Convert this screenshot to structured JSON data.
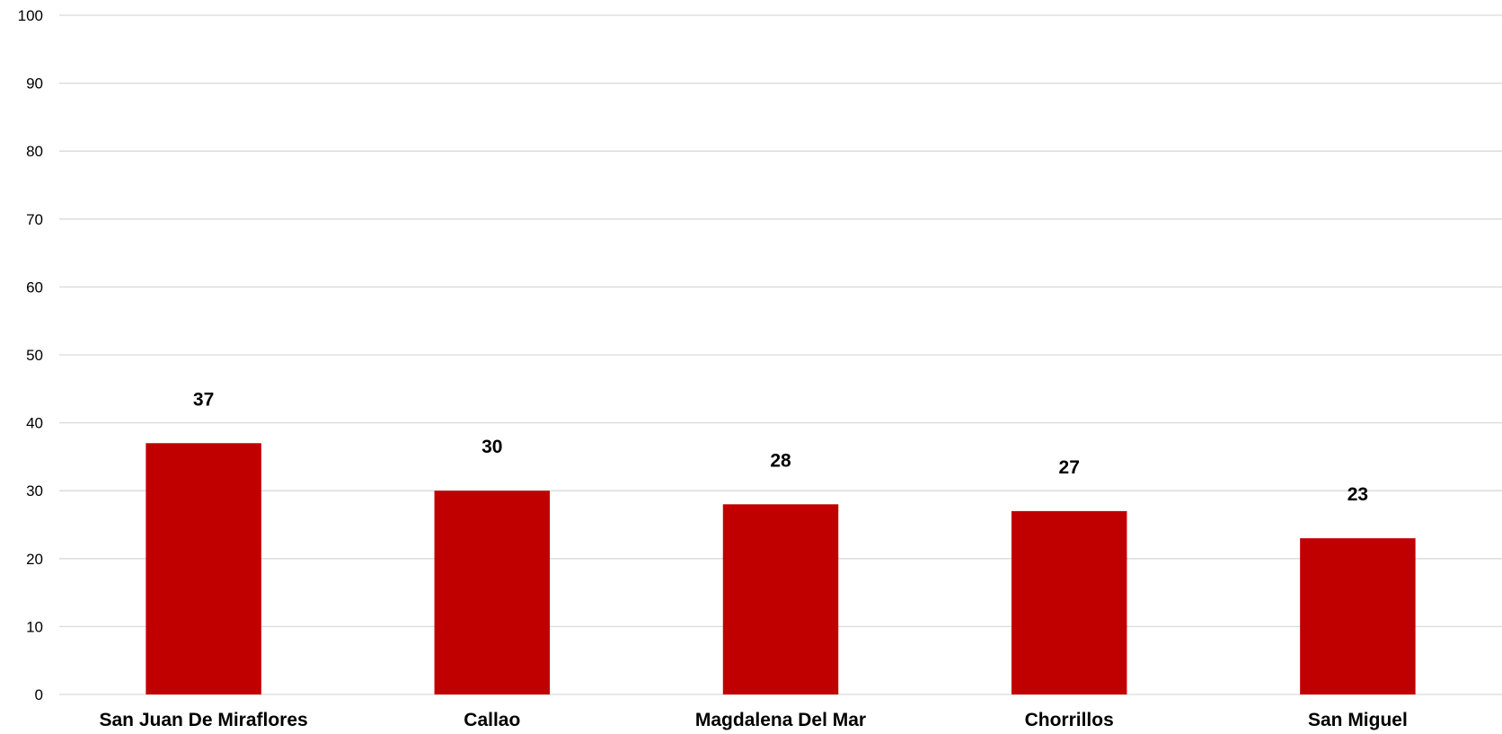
{
  "chart_data": {
    "type": "bar",
    "title": "",
    "xlabel": "",
    "ylabel": "",
    "categories": [
      "San Juan De Miraflores",
      "Callao",
      "Magdalena Del Mar",
      "Chorrillos",
      "San Miguel"
    ],
    "values": [
      37,
      30,
      28,
      27,
      23
    ],
    "data_labels": [
      "37",
      "30",
      "28",
      "27",
      "23"
    ],
    "ylim": [
      0,
      100
    ],
    "y_ticks": [
      0,
      10,
      20,
      30,
      40,
      50,
      60,
      70,
      80,
      90,
      100
    ],
    "grid": true,
    "legend": "none",
    "colors": {
      "bar": "#c00000",
      "grid": "#d9d9d9",
      "text": "#000000"
    }
  }
}
